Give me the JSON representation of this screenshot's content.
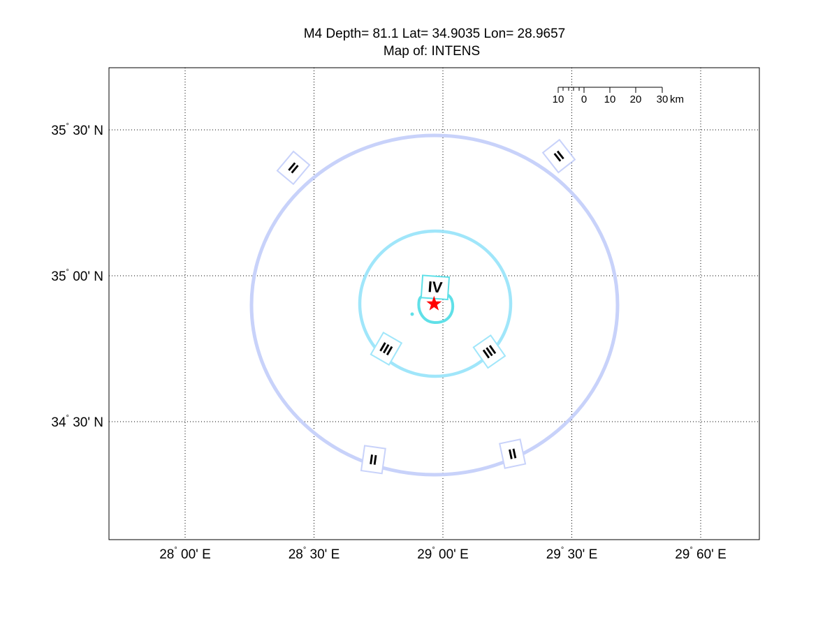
{
  "title_line1": "M4 Depth= 81.1 Lat= 34.9035 Lon= 28.9657",
  "title_line2": "Map of: INTENS",
  "y_ticks": [
    {
      "value": 35.5,
      "deg": "35",
      "min": "30' N"
    },
    {
      "value": 35.0,
      "deg": "35",
      "min": "00' N"
    },
    {
      "value": 34.5,
      "deg": "34",
      "min": "30' N"
    }
  ],
  "x_ticks": [
    {
      "value": 28.0,
      "deg": "28",
      "min": "00' E"
    },
    {
      "value": 28.5,
      "deg": "28",
      "min": "30' E"
    },
    {
      "value": 29.0,
      "deg": "29",
      "min": "00' E"
    },
    {
      "value": 29.5,
      "deg": "29",
      "min": "30' E"
    },
    {
      "value": 30.0,
      "deg": "29",
      "min": "60' E"
    }
  ],
  "scale_bar": {
    "labels": [
      "10",
      "0",
      "10",
      "20",
      "30"
    ],
    "unit": "km"
  },
  "colors": {
    "contour_II": "#c8d2fa",
    "contour_III": "#a0e6fa",
    "contour_IV": "#60e0e8",
    "epicenter": "#ff0000",
    "grid": "#000000"
  },
  "map_data": {
    "epicenter": {
      "lat": 34.9035,
      "lon": 28.9657,
      "symbol": "star"
    },
    "intensity_contours": [
      {
        "level": "II",
        "labels": [
          {
            "text": "II",
            "lat": 35.37,
            "lon": 28.42,
            "rot": 40
          },
          {
            "text": "II",
            "lat": 35.41,
            "lon": 29.45,
            "rot": -38
          },
          {
            "text": "II",
            "lat": 34.37,
            "lon": 28.73,
            "rot": 8
          },
          {
            "text": "II",
            "lat": 34.39,
            "lon": 29.27,
            "rot": -12
          }
        ]
      },
      {
        "level": "III",
        "labels": [
          {
            "text": "III",
            "lat": 34.75,
            "lon": 28.78,
            "rot": 30
          },
          {
            "text": "III",
            "lat": 34.74,
            "lon": 29.18,
            "rot": -35
          }
        ]
      },
      {
        "level": "IV",
        "labels": [
          {
            "text": "IV",
            "lat": 34.96,
            "lon": 28.97,
            "rot": 4
          }
        ]
      }
    ]
  }
}
